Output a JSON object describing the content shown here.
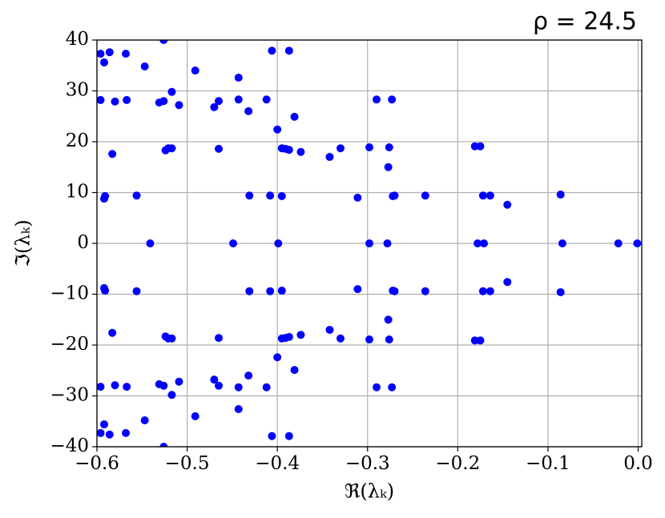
{
  "chart_data": {
    "type": "scatter",
    "title": "ρ = 24.5",
    "x_label": "ℜ(λₖ)",
    "y_label": "ℑ(λₖ)",
    "color": "#0000ff",
    "grid": true,
    "xlim": [
      -0.6,
      0.004
    ],
    "ylim": [
      -40,
      40
    ],
    "xticks": [
      {
        "value": -0.6,
        "label": "−0.6"
      },
      {
        "value": -0.5,
        "label": "−0.5"
      },
      {
        "value": -0.4,
        "label": "−0.4"
      },
      {
        "value": -0.3,
        "label": "−0.3"
      },
      {
        "value": -0.2,
        "label": "−0.2"
      },
      {
        "value": -0.1,
        "label": "−0.1"
      },
      {
        "value": 0,
        "label": "0.0"
      }
    ],
    "yticks": [
      {
        "value": -40,
        "label": "−40"
      },
      {
        "value": -30,
        "label": "−30"
      },
      {
        "value": -20,
        "label": "−20"
      },
      {
        "value": -10,
        "label": "−10"
      },
      0,
      10,
      20,
      30,
      40
    ],
    "x": [
      -0.596,
      -0.586,
      -0.592,
      -0.568,
      -0.526,
      -0.547,
      -0.491,
      -0.406,
      -0.387,
      -0.443,
      -0.596,
      -0.58,
      -0.567,
      -0.531,
      -0.526,
      -0.517,
      -0.509,
      -0.47,
      -0.465,
      -0.443,
      -0.432,
      -0.412,
      -0.381,
      -0.4,
      -0.29,
      -0.273,
      -0.583,
      -0.524,
      -0.521,
      -0.517,
      -0.465,
      -0.395,
      -0.391,
      -0.387,
      -0.374,
      -0.342,
      -0.33,
      -0.298,
      -0.276,
      -0.277,
      -0.181,
      -0.175,
      -0.591,
      -0.592,
      -0.556,
      -0.431,
      -0.408,
      -0.395,
      -0.311,
      -0.272,
      -0.27,
      -0.236,
      -0.172,
      -0.164,
      -0.145,
      -0.086,
      -0.541,
      -0.449,
      -0.399,
      -0.298,
      -0.278,
      -0.178,
      -0.171,
      -0.084,
      -0.022,
      -0.001,
      -0.596,
      -0.586,
      -0.592,
      -0.568,
      -0.526,
      -0.547,
      -0.491,
      -0.406,
      -0.387,
      -0.443,
      -0.596,
      -0.58,
      -0.567,
      -0.531,
      -0.526,
      -0.517,
      -0.509,
      -0.47,
      -0.465,
      -0.443,
      -0.432,
      -0.412,
      -0.381,
      -0.4,
      -0.29,
      -0.273,
      -0.583,
      -0.524,
      -0.521,
      -0.517,
      -0.465,
      -0.395,
      -0.391,
      -0.387,
      -0.374,
      -0.342,
      -0.33,
      -0.298,
      -0.276,
      -0.277,
      -0.181,
      -0.175,
      -0.591,
      -0.592,
      -0.556,
      -0.431,
      -0.408,
      -0.395,
      -0.311,
      -0.272,
      -0.27,
      -0.236,
      -0.172,
      -0.164,
      -0.145,
      -0.086
    ],
    "values": [
      37.3,
      37.6,
      35.6,
      37.3,
      40,
      34.8,
      34.0,
      37.9,
      37.9,
      32.6,
      28.2,
      27.9,
      28.2,
      27.7,
      28.0,
      29.8,
      27.2,
      26.8,
      28.0,
      28.3,
      26.0,
      28.3,
      24.9,
      22.4,
      28.3,
      28.3,
      17.6,
      18.3,
      18.7,
      18.7,
      18.6,
      18.7,
      18.6,
      18.4,
      18.0,
      17.0,
      18.7,
      18.9,
      18.9,
      15.0,
      19.1,
      19.1,
      9.3,
      8.8,
      9.4,
      9.4,
      9.4,
      9.3,
      9.0,
      9.3,
      9.4,
      9.4,
      9.4,
      9.4,
      7.6,
      9.6,
      0,
      0,
      0,
      0,
      0,
      0,
      0,
      0,
      0,
      0,
      -37.3,
      -37.6,
      -35.6,
      -37.3,
      -40,
      -34.8,
      -34.0,
      -37.9,
      -37.9,
      -32.6,
      -28.2,
      -27.9,
      -28.2,
      -27.7,
      -28.0,
      -29.8,
      -27.2,
      -26.8,
      -28.0,
      -28.3,
      -26.0,
      -28.3,
      -24.9,
      -22.4,
      -28.3,
      -28.3,
      -17.6,
      -18.3,
      -18.7,
      -18.7,
      -18.6,
      -18.7,
      -18.6,
      -18.4,
      -18.0,
      -17.0,
      -18.7,
      -18.9,
      -18.9,
      -15.0,
      -19.1,
      -19.1,
      -9.3,
      -8.8,
      -9.4,
      -9.4,
      -9.4,
      -9.3,
      -9.0,
      -9.3,
      -9.4,
      -9.4,
      -9.4,
      -9.4,
      -7.6,
      -9.6
    ]
  }
}
